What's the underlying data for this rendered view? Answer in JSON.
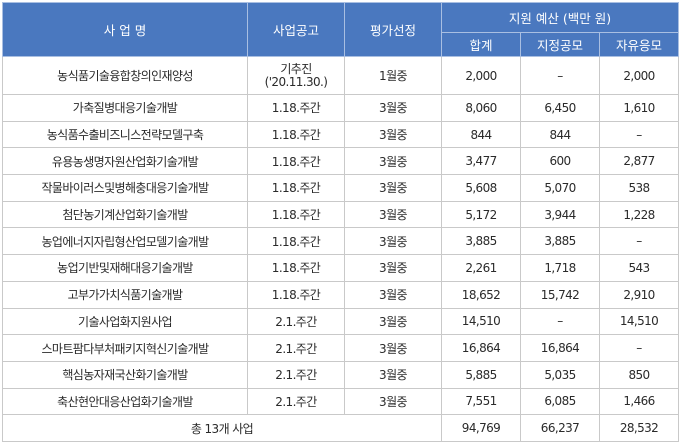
{
  "header": {
    "col_name": "사 업 명",
    "col_notice": "사업공고",
    "col_selection": "평가선정",
    "col_budget_group": "지원 예산 (백만 원)",
    "col_total": "합계",
    "col_designated": "지정공모",
    "col_free": "자유응모"
  },
  "rows": [
    {
      "name": "농식품기술융합창의인재양성",
      "notice_line1": "기추진",
      "notice_line2": "('20.11.30.)",
      "selection": "1월중",
      "total": "2,000",
      "designated": "–",
      "free": "2,000"
    },
    {
      "name": "가축질병대응기술개발",
      "notice": "1.18.주간",
      "selection": "3월중",
      "total": "8,060",
      "designated": "6,450",
      "free": "1,610"
    },
    {
      "name": "농식품수출비즈니스전략모델구축",
      "notice": "1.18.주간",
      "selection": "3월중",
      "total": "844",
      "designated": "844",
      "free": "–"
    },
    {
      "name": "유용농생명자원산업화기술개발",
      "notice": "1.18.주간",
      "selection": "3월중",
      "total": "3,477",
      "designated": "600",
      "free": "2,877"
    },
    {
      "name": "작물바이러스및병해충대응기술개발",
      "notice": "1.18.주간",
      "selection": "3월중",
      "total": "5,608",
      "designated": "5,070",
      "free": "538"
    },
    {
      "name": "첨단농기계산업화기술개발",
      "notice": "1.18.주간",
      "selection": "3월중",
      "total": "5,172",
      "designated": "3,944",
      "free": "1,228"
    },
    {
      "name": "농업에너지자립형산업모델기술개발",
      "notice": "1.18.주간",
      "selection": "3월중",
      "total": "3,885",
      "designated": "3,885",
      "free": "–"
    },
    {
      "name": "농업기반및재해대응기술개발",
      "notice": "1.18.주간",
      "selection": "3월중",
      "total": "2,261",
      "designated": "1,718",
      "free": "543"
    },
    {
      "name": "고부가가치식품기술개발",
      "notice": "1.18.주간",
      "selection": "3월중",
      "total": "18,652",
      "designated": "15,742",
      "free": "2,910"
    },
    {
      "name": "기술사업화지원사업",
      "notice": "2.1.주간",
      "selection": "3월중",
      "total": "14,510",
      "designated": "–",
      "free": "14,510"
    },
    {
      "name": "스마트팜다부처패키지혁신기술개발",
      "notice": "2.1.주간",
      "selection": "3월중",
      "total": "16,864",
      "designated": "16,864",
      "free": "–"
    },
    {
      "name": "핵심농자재국산화기술개발",
      "notice": "2.1.주간",
      "selection": "3월중",
      "total": "5,885",
      "designated": "5,035",
      "free": "850"
    },
    {
      "name": "축산현안대응산업화기술개발",
      "notice": "2.1.주간",
      "selection": "3월중",
      "total": "7,551",
      "designated": "6,085",
      "free": "1,466"
    }
  ],
  "footer": {
    "label": "총 13개 사업",
    "total": "94,769",
    "designated": "66,237",
    "free": "28,532"
  }
}
